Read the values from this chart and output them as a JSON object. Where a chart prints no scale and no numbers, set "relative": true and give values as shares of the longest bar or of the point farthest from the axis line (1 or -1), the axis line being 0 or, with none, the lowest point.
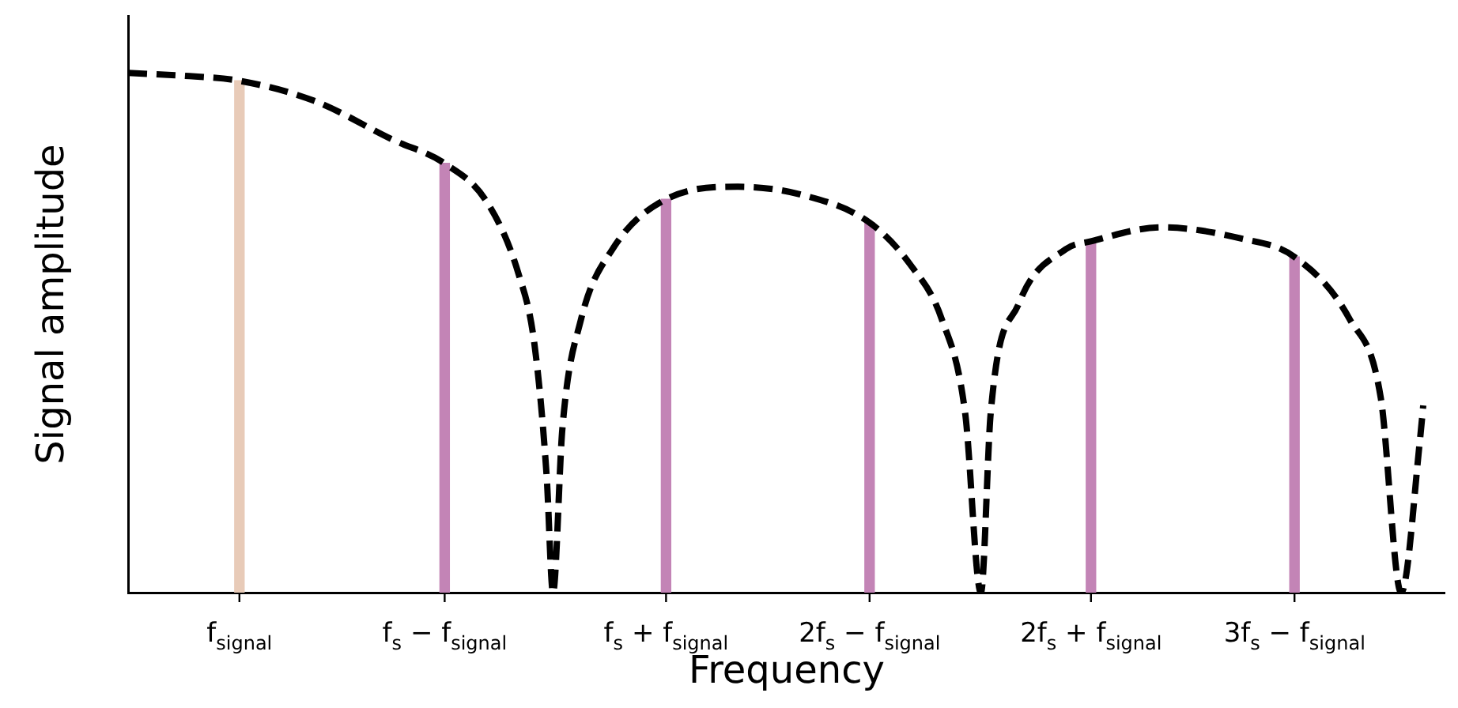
{
  "chart_data": {
    "type": "bar",
    "xlabel": "Frequency",
    "ylabel": "Signal amplitude",
    "relative": true,
    "xlim": [
      0,
      3.1
    ],
    "xticks": [
      {
        "value": 0.262,
        "label": "f$_{signal}$"
      },
      {
        "value": 0.745,
        "label": "f$_{s}$ − f$_{signal}$"
      },
      {
        "value": 1.266,
        "label": "f$_{s}$ + f$_{signal}$"
      },
      {
        "value": 1.745,
        "label": "2f$_{s}$ − f$_{signal}$"
      },
      {
        "value": 2.266,
        "label": "2f$_{s}$ + f$_{signal}$"
      },
      {
        "value": 2.745,
        "label": "3f$_{s}$ − f$_{signal}$"
      }
    ],
    "marker": "none",
    "series": [
      {
        "x": [
          0.262,
          0.745,
          1.266,
          1.745,
          2.266,
          2.745
        ],
        "values": [
          0.985,
          0.826,
          0.757,
          0.712,
          0.676,
          0.646
        ],
        "colors": [
          "#e8cbb8",
          "#c384b6",
          "#c384b6",
          "#c384b6",
          "#c384b6",
          "#c384b6"
        ]
      },
      {
        "type": "line",
        "color": "#000000",
        "line_style": "dashed",
        "x": [
          0,
          0.144,
          0.262,
          0.439,
          0.624,
          0.745,
          0.845,
          0.919,
          0.956,
          0.985,
          1.0,
          1.022,
          1.066,
          1.14,
          1.266,
          1.435,
          1.583,
          1.745,
          1.841,
          1.915,
          1.97,
          2.007,
          2.03,
          2.096,
          2.207,
          2.266,
          2.432,
          2.616,
          2.745,
          2.875,
          2.948,
          2.996,
          3.041,
          3.048
        ],
        "values": [
          1.0,
          0.994,
          0.985,
          0.946,
          0.871,
          0.826,
          0.751,
          0.613,
          0.48,
          0.225,
          0,
          0.315,
          0.526,
          0.661,
          0.757,
          0.781,
          0.766,
          0.712,
          0.631,
          0.526,
          0.345,
          0,
          0.345,
          0.556,
          0.661,
          0.676,
          0.703,
          0.682,
          0.646,
          0.526,
          0.375,
          0,
          0.3,
          0.36
        ]
      }
    ]
  }
}
